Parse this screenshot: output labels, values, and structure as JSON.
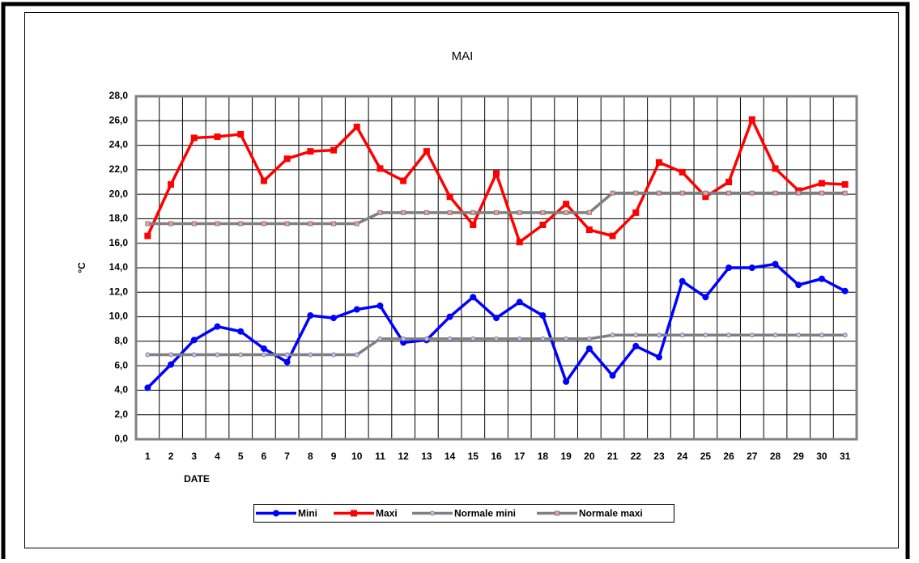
{
  "chart_data": {
    "type": "line",
    "title": "MAI",
    "xlabel": "DATE",
    "ylabel": "°C",
    "categories": [
      "1",
      "2",
      "3",
      "4",
      "5",
      "6",
      "7",
      "8",
      "9",
      "10",
      "11",
      "12",
      "13",
      "14",
      "15",
      "16",
      "17",
      "18",
      "19",
      "20",
      "21",
      "22",
      "23",
      "24",
      "25",
      "26",
      "27",
      "28",
      "29",
      "30",
      "31"
    ],
    "series": [
      {
        "name": "Mini",
        "color": "#0000ff",
        "marker": "circle",
        "values": [
          4.2,
          6.1,
          8.1,
          9.2,
          8.8,
          7.4,
          6.3,
          10.1,
          9.9,
          10.6,
          10.9,
          7.9,
          8.1,
          10.0,
          11.6,
          9.9,
          11.2,
          10.1,
          4.7,
          7.4,
          5.2,
          7.6,
          6.7,
          12.9,
          11.6,
          14.0,
          14.0,
          14.3,
          12.6,
          13.1,
          12.1
        ]
      },
      {
        "name": "Maxi",
        "color": "#ff0000",
        "marker": "square",
        "values": [
          16.6,
          20.8,
          24.6,
          24.7,
          24.9,
          21.1,
          22.9,
          23.5,
          23.6,
          25.5,
          22.1,
          21.1,
          23.5,
          19.8,
          17.5,
          21.7,
          16.1,
          17.5,
          19.2,
          17.1,
          16.6,
          18.5,
          22.6,
          21.8,
          19.8,
          21.0,
          26.1,
          22.1,
          20.3,
          20.9,
          20.8
        ]
      },
      {
        "name": "Normale mini",
        "color": "#808080",
        "marker": "circle",
        "marker_color": "#c0c0ff",
        "values": [
          6.9,
          6.9,
          6.9,
          6.9,
          6.9,
          6.9,
          6.9,
          6.9,
          6.9,
          6.9,
          8.2,
          8.2,
          8.2,
          8.2,
          8.2,
          8.2,
          8.2,
          8.2,
          8.2,
          8.2,
          8.5,
          8.5,
          8.5,
          8.5,
          8.5,
          8.5,
          8.5,
          8.5,
          8.5,
          8.5,
          8.5
        ]
      },
      {
        "name": "Normale maxi",
        "color": "#808080",
        "marker": "square",
        "marker_color": "#ff9999",
        "values": [
          17.6,
          17.6,
          17.6,
          17.6,
          17.6,
          17.6,
          17.6,
          17.6,
          17.6,
          17.6,
          18.5,
          18.5,
          18.5,
          18.5,
          18.5,
          18.5,
          18.5,
          18.5,
          18.5,
          18.5,
          20.1,
          20.1,
          20.1,
          20.1,
          20.1,
          20.1,
          20.1,
          20.1,
          20.1,
          20.1,
          20.1
        ]
      }
    ],
    "ylim": [
      0,
      28
    ],
    "yticks": [
      {
        "value": 0,
        "label": "0,0"
      },
      {
        "value": 2,
        "label": "2,0"
      },
      {
        "value": 4,
        "label": "4,0"
      },
      {
        "value": 6,
        "label": "6,0"
      },
      {
        "value": 8,
        "label": "8,0"
      },
      {
        "value": 10,
        "label": "10,0"
      },
      {
        "value": 12,
        "label": "12,0"
      },
      {
        "value": 14,
        "label": "14,0"
      },
      {
        "value": 16,
        "label": "16,0"
      },
      {
        "value": 18,
        "label": "18,0"
      },
      {
        "value": 20,
        "label": "20,0"
      },
      {
        "value": 22,
        "label": "22,0"
      },
      {
        "value": 24,
        "label": "24,0"
      },
      {
        "value": 26,
        "label": "26,0"
      },
      {
        "value": 28,
        "label": "28,0"
      }
    ],
    "grid": true,
    "legend": "bottom"
  }
}
